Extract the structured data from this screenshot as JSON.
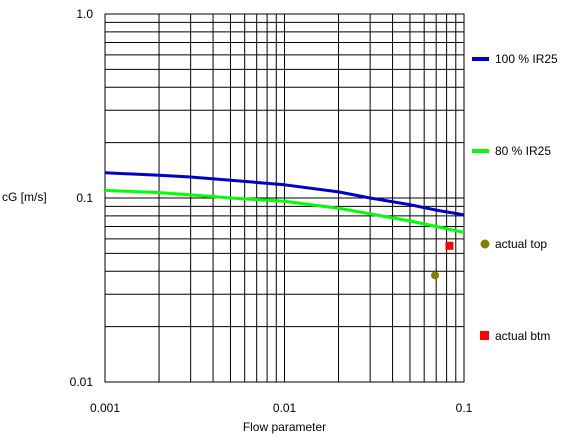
{
  "chart_data": {
    "type": "line",
    "x_scale": "log",
    "y_scale": "log",
    "xlim": [
      0.001,
      0.1
    ],
    "ylim": [
      0.01,
      1.0
    ],
    "xlabel": "Flow parameter",
    "ylabel": "cG [m/s]",
    "grid": true,
    "legend_position": "right",
    "x_ticks": [
      {
        "value": 0.001,
        "label": "0.001"
      },
      {
        "value": 0.01,
        "label": "0.01"
      },
      {
        "value": 0.1,
        "label": "0.1"
      }
    ],
    "y_ticks": [
      {
        "value": 0.01,
        "label": "0.01"
      },
      {
        "value": 0.1,
        "label": "0.1"
      },
      {
        "value": 1.0,
        "label": "1.0"
      }
    ],
    "series": [
      {
        "name": "100 % IR25",
        "kind": "line",
        "color": "#0000cc",
        "x": [
          0.001,
          0.002,
          0.003,
          0.005,
          0.01,
          0.02,
          0.03,
          0.05,
          0.07,
          0.1
        ],
        "y": [
          0.137,
          0.133,
          0.13,
          0.125,
          0.118,
          0.108,
          0.1,
          0.092,
          0.086,
          0.081
        ]
      },
      {
        "name": "80 % IR25",
        "kind": "line",
        "color": "#00ff00",
        "x": [
          0.001,
          0.002,
          0.003,
          0.005,
          0.01,
          0.02,
          0.03,
          0.05,
          0.07,
          0.1
        ],
        "y": [
          0.11,
          0.107,
          0.104,
          0.1,
          0.096,
          0.088,
          0.082,
          0.075,
          0.07,
          0.065
        ]
      },
      {
        "name": "actual top",
        "kind": "point",
        "marker": "circle",
        "color": "#808000",
        "x": [
          0.069
        ],
        "y": [
          0.038
        ]
      },
      {
        "name": "actual btm",
        "kind": "point",
        "marker": "square",
        "color": "#ff0000",
        "x": [
          0.083
        ],
        "y": [
          0.055
        ]
      }
    ]
  }
}
